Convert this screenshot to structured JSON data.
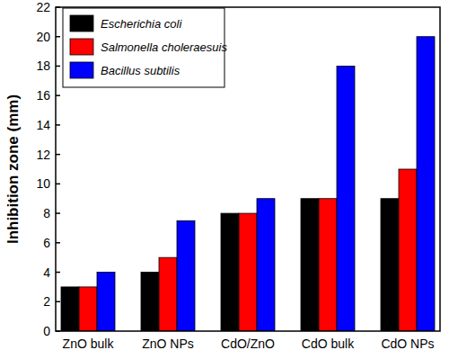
{
  "chart_data": {
    "type": "bar",
    "y_label": "Inhibition zone (mm)",
    "categories": [
      "ZnO bulk",
      "ZnO NPs",
      "CdO/ZnO",
      "CdO bulk",
      "CdO NPs"
    ],
    "series": [
      {
        "name": "Escherichia coli",
        "color": "#000000",
        "values": [
          3,
          4,
          8,
          9,
          9
        ]
      },
      {
        "name": "Salmonella choleraesuis",
        "color": "#ff0000",
        "values": [
          3,
          5,
          8,
          9,
          11
        ]
      },
      {
        "name": "Bacillus subtilis",
        "color": "#0000ff",
        "values": [
          4,
          7.5,
          9,
          18,
          20
        ]
      }
    ],
    "ylim": [
      0,
      22
    ],
    "yticks": [
      0,
      2,
      4,
      6,
      8,
      10,
      12,
      14,
      16,
      18,
      20,
      22
    ],
    "grid": false,
    "legend": "top-left"
  }
}
